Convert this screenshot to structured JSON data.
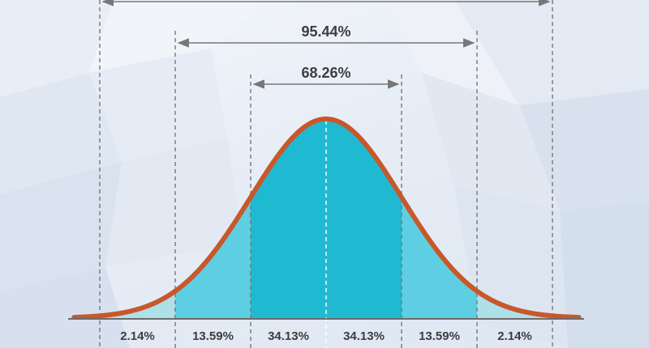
{
  "chart_data": {
    "type": "area",
    "distribution": "normal",
    "x_sigma": [
      -3,
      -2,
      -1,
      0,
      1,
      2,
      3
    ],
    "segments": [
      {
        "from": -4,
        "to": -3,
        "label": "",
        "color": "#eef2f8"
      },
      {
        "from": -3,
        "to": -2,
        "label": "2.14%",
        "color": "#aee0ea"
      },
      {
        "from": -2,
        "to": -1,
        "label": "13.59%",
        "color": "#5ecfe2"
      },
      {
        "from": -1,
        "to": 0,
        "label": "34.13%",
        "color": "#20b9d2"
      },
      {
        "from": 0,
        "to": 1,
        "label": "34.13%",
        "color": "#20b9d2"
      },
      {
        "from": 1,
        "to": 2,
        "label": "13.59%",
        "color": "#5ecfe2"
      },
      {
        "from": 2,
        "to": 3,
        "label": "2.14%",
        "color": "#aee0ea"
      },
      {
        "from": 3,
        "to": 4,
        "label": "",
        "color": "#eef2f8"
      }
    ],
    "ranges": [
      {
        "from": -1,
        "to": 1,
        "label": "68.26%"
      },
      {
        "from": -2,
        "to": 2,
        "label": "95.44%"
      },
      {
        "from": -3,
        "to": 3,
        "label": ""
      }
    ],
    "colors": {
      "curve": "#c8582a",
      "axis": "#6b6b6b",
      "guide": "#777777",
      "text": "#3d3d3d"
    }
  }
}
